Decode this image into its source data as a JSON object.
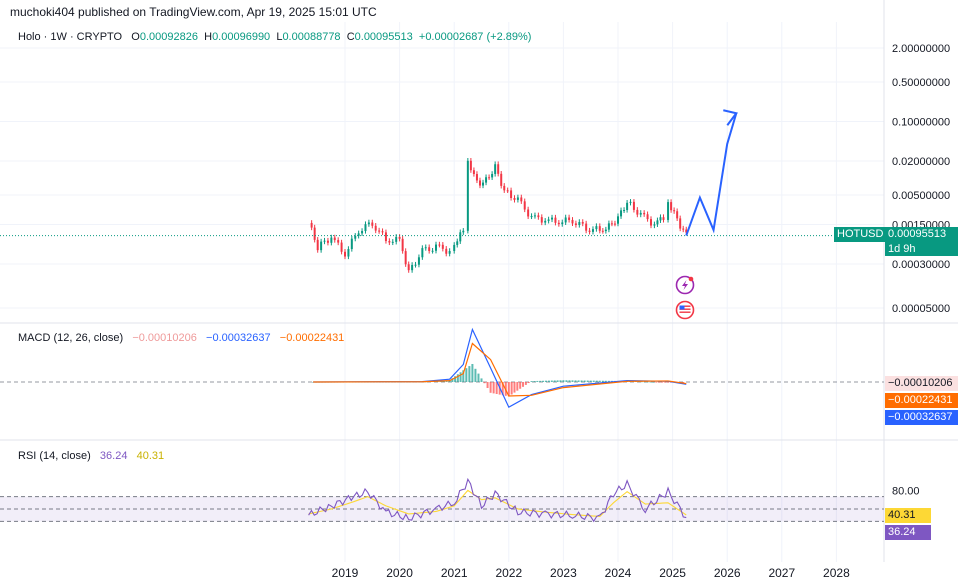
{
  "header": {
    "published": "muchoki404 published on TradingView.com, Apr 19, 2025 15:01 UTC"
  },
  "legend": {
    "symbol": "Holo · 1W · CRYPTO",
    "open_label": "O",
    "open": "0.00092826",
    "high_label": "H",
    "high": "0.00096990",
    "low_label": "L",
    "low": "0.00088778",
    "close_label": "C",
    "close": "0.00095513",
    "change": "+0.00002687 (+2.89%)"
  },
  "price_axis": {
    "ticks": [
      "2.00000000",
      "0.50000000",
      "0.10000000",
      "0.02000000",
      "0.00500000",
      "0.00150000",
      "0.00030000",
      "0.00005000"
    ],
    "symbol_tag": "HOTUSD",
    "last_price": "0.00095513",
    "countdown": "1d 9h"
  },
  "macd": {
    "label": "MACD (12, 26, close)",
    "histogram": "−0.00010206",
    "macd": "−0.00032637",
    "signal": "−0.00022431"
  },
  "rsi": {
    "label": "RSI (14, close)",
    "rsi": "36.24",
    "ma": "40.31",
    "level": "80.00"
  },
  "time_axis": [
    "2019",
    "2020",
    "2021",
    "2022",
    "2023",
    "2024",
    "2025",
    "2026",
    "2027",
    "2028"
  ],
  "colors": {
    "up": "#089981",
    "down": "#F23645",
    "projection": "#2962FF",
    "macd_line": "#2962FF",
    "signal_line": "#FF6D00",
    "rsi_line": "#7E57C2",
    "rsi_ma": "#FDD835"
  },
  "chart_data": [
    {
      "type": "line",
      "title": "Holo · 1W · CRYPTO",
      "y_scale": "log",
      "series": [
        {
          "name": "",
          "x": [
            "2018-05",
            "2018-07",
            "2018-10",
            "2019-01",
            "2019-04",
            "2019-07",
            "2019-10",
            "2020-01",
            "2020-03",
            "2020-06",
            "2020-09",
            "2020-12",
            "2021-01",
            "2021-03",
            "2021-04",
            "2021-06",
            "2021-08",
            "2021-10",
            "2021-12",
            "2022-03",
            "2022-06",
            "2022-09",
            "2022-12",
            "2023-03",
            "2023-06",
            "2023-09",
            "2023-11",
            "2024-01",
            "2024-03",
            "2024-06",
            "2024-09",
            "2024-11",
            "2024-12",
            "2025-02",
            "2025-04"
          ],
          "values": [
            0.0016,
            0.0006,
            0.0009,
            0.00045,
            0.0012,
            0.0016,
            0.0008,
            0.0008,
            0.00022,
            0.0005,
            0.0006,
            0.0005,
            0.0006,
            0.0012,
            0.022,
            0.008,
            0.009,
            0.016,
            0.006,
            0.004,
            0.002,
            0.0018,
            0.0017,
            0.0018,
            0.0013,
            0.0012,
            0.0014,
            0.002,
            0.0038,
            0.0022,
            0.0015,
            0.002,
            0.0038,
            0.0018,
            0.00095513
          ]
        },
        {
          "name": "",
          "x": [
            "2025-04",
            "2025-07",
            "2025-10",
            "2026-01",
            "2026-03"
          ],
          "values": [
            0.00095513,
            0.0045,
            0.0012,
            0.04,
            0.14
          ]
        }
      ]
    },
    {
      "type": "line",
      "title": "MACD (12, 26, close)",
      "series": [
        {
          "name": "MACD",
          "x": [
            "2018-06",
            "2020-06",
            "2020-12",
            "2021-03",
            "2021-05",
            "2021-09",
            "2022-01",
            "2022-06",
            "2023-01",
            "2024-03",
            "2024-12",
            "2025-04"
          ],
          "values": [
            0,
            5e-05,
            0.0004,
            0.0025,
            0.0075,
            0.002,
            -0.0036,
            -0.0018,
            -0.0006,
            0.0002,
            0.0001,
            -0.00032637
          ]
        },
        {
          "name": "Signal",
          "x": [
            "2018-06",
            "2020-06",
            "2020-12",
            "2021-03",
            "2021-05",
            "2021-09",
            "2022-01",
            "2022-06",
            "2023-01",
            "2024-03",
            "2024-12",
            "2025-04"
          ],
          "values": [
            0,
            4e-05,
            0.0002,
            0.0012,
            0.0055,
            0.0032,
            -0.002,
            -0.0019,
            -0.0008,
            0.0001,
            0.00015,
            -0.00022431
          ]
        }
      ]
    },
    {
      "type": "line",
      "title": "RSI (14, close)",
      "ylim": [
        0,
        100
      ],
      "series": [
        {
          "name": "RSI",
          "x": [
            "2018-05",
            "2018-10",
            "2019-03",
            "2019-06",
            "2019-10",
            "2020-03",
            "2020-09",
            "2021-01",
            "2021-04",
            "2021-07",
            "2021-10",
            "2022-03",
            "2022-09",
            "2023-03",
            "2023-09",
            "2023-12",
            "2024-03",
            "2024-07",
            "2024-12",
            "2025-04"
          ],
          "values": [
            40,
            55,
            70,
            78,
            45,
            35,
            50,
            60,
            95,
            55,
            75,
            45,
            42,
            40,
            35,
            75,
            90,
            50,
            78,
            36.24
          ]
        },
        {
          "name": "MA",
          "x": [
            "2018-05",
            "2018-10",
            "2019-03",
            "2019-06",
            "2019-10",
            "2020-03",
            "2020-09",
            "2021-01",
            "2021-04",
            "2021-07",
            "2021-10",
            "2022-03",
            "2022-09",
            "2023-03",
            "2023-09",
            "2023-12",
            "2024-03",
            "2024-07",
            "2024-12",
            "2025-04"
          ],
          "values": [
            42,
            50,
            62,
            70,
            55,
            42,
            46,
            55,
            80,
            65,
            68,
            50,
            45,
            41,
            38,
            60,
            78,
            58,
            60,
            40.31
          ]
        }
      ]
    }
  ]
}
